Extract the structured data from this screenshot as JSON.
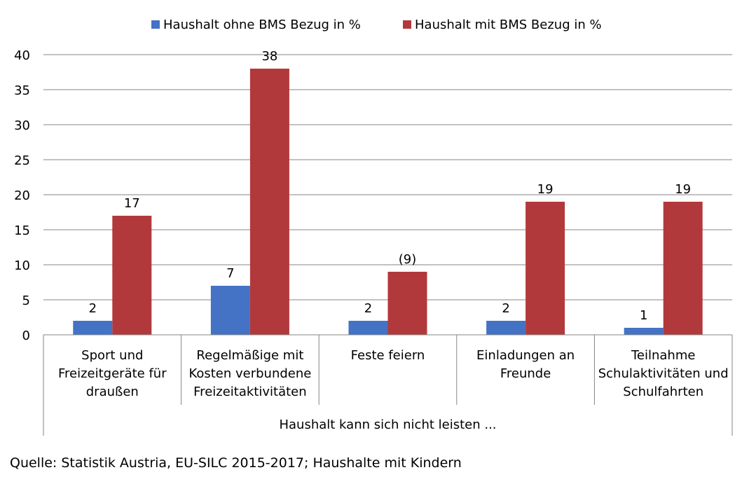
{
  "chart_data": {
    "type": "bar",
    "categories": [
      [
        "Sport und",
        "Freizeitgeräte für",
        "draußen"
      ],
      [
        "Regelmäßige mit",
        "Kosten verbundene",
        "Freizeitaktivitäten"
      ],
      [
        "Feste feiern"
      ],
      [
        "Einladungen an",
        "Freunde"
      ],
      [
        "Teilnahme",
        "Schulaktivitäten und",
        "Schulfahrten"
      ]
    ],
    "series": [
      {
        "name": "Haushalt ohne BMS Bezug in %",
        "values": [
          2,
          7,
          2,
          2,
          1
        ],
        "labels": [
          "2",
          "7",
          "2",
          "2",
          "1"
        ],
        "color": "#4472C4"
      },
      {
        "name": "Haushalt mit BMS Bezug in %",
        "values": [
          17,
          38,
          9,
          19,
          19
        ],
        "labels": [
          "17",
          "38",
          "(9)",
          "19",
          "19"
        ],
        "color": "#B2393B"
      }
    ],
    "ylim": [
      0,
      40
    ],
    "yticks": [
      0,
      5,
      10,
      15,
      20,
      25,
      30,
      35,
      40
    ],
    "xlabel": "Haushalt kann sich nicht leisten ...",
    "ylabel": "",
    "grid": true,
    "legend": "top-center"
  },
  "source_note": "Quelle: Statistik Austria, EU-SILC 2015-2017; Haushalte mit Kindern"
}
